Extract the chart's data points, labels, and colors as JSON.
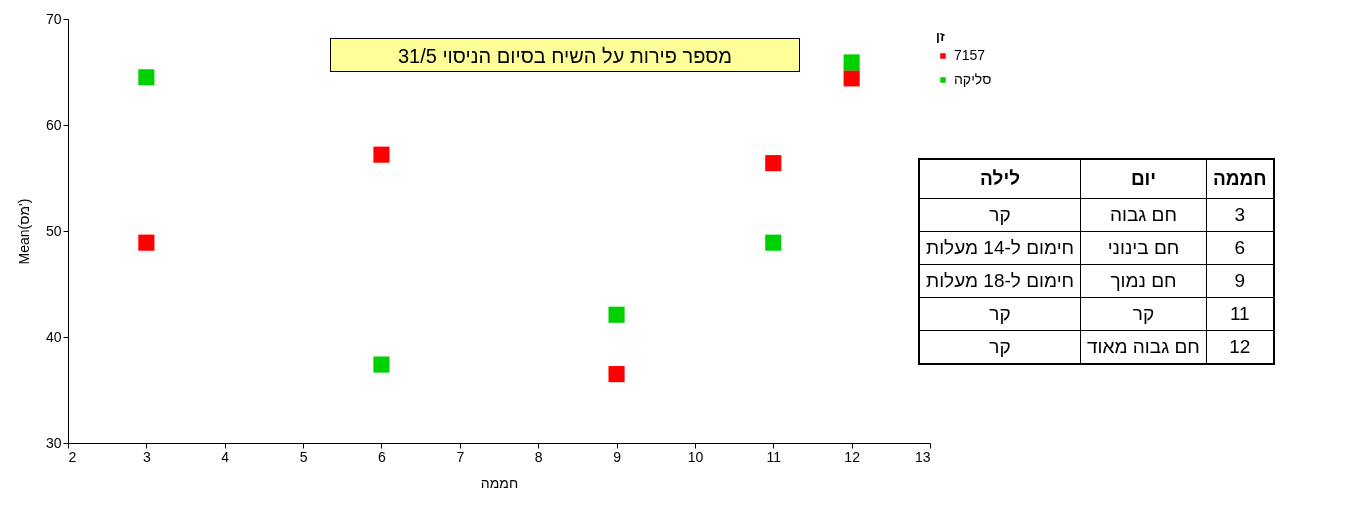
{
  "chart_data": [
    {
      "type": "scatter",
      "title": "מספר פירות על השיח בסיום הניסוי 31/5",
      "xlabel": "חממה",
      "ylabel": "Mean(מס')",
      "legend_title": "זן",
      "legend": "top right",
      "marker": "square",
      "grid": false,
      "xlim": [
        2,
        13
      ],
      "xticks": [
        2,
        3,
        4,
        5,
        6,
        7,
        8,
        9,
        10,
        11,
        12,
        13
      ],
      "ylim": [
        30,
        70
      ],
      "yticks": [
        30,
        40,
        50,
        60,
        70
      ],
      "x": [
        3,
        6,
        9,
        11,
        12
      ],
      "series": [
        {
          "name": "7157",
          "color": "#ff0000",
          "values": [
            48.9,
            57.2,
            36.5,
            56.4,
            64.4
          ]
        },
        {
          "name": "סליקה",
          "color": "#00d000",
          "values": [
            64.5,
            37.4,
            42.1,
            48.9,
            65.9
          ]
        }
      ]
    },
    {
      "type": "other",
      "categories": [
        "חממה",
        "יום",
        "לילה"
      ],
      "annotations": [
        "3",
        "חם גבוה",
        "קר",
        "6",
        "חם בינוני",
        "חימום ל-14 מעלות",
        "9",
        "חם נמוך",
        "חימום ל-18 מעלות",
        "11",
        "קר",
        "קר",
        "12",
        "חם גבוה מאוד",
        "קר"
      ]
    }
  ]
}
